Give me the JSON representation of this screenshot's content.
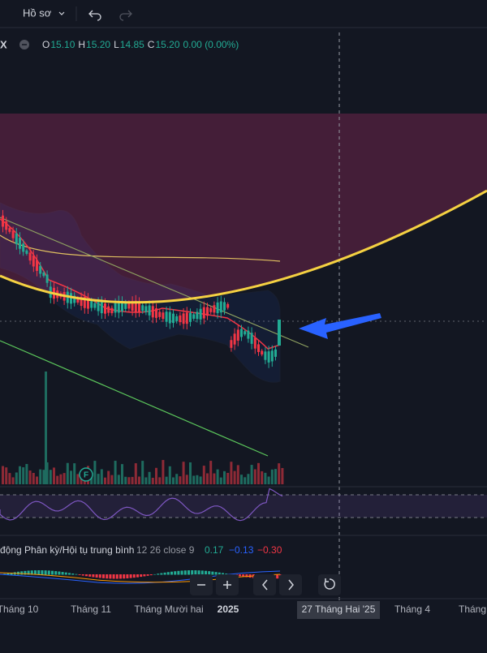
{
  "toolbar": {
    "profile": "Hồ sơ"
  },
  "legend": {
    "symbol": "X",
    "ohlc": [
      {
        "label": "O",
        "value": "15.10"
      },
      {
        "label": "H",
        "value": "15.20"
      },
      {
        "label": "L",
        "value": "14.85"
      },
      {
        "label": "C",
        "value": "15.20"
      }
    ],
    "change": "0.00 (0.00%)"
  },
  "marker": "F",
  "indicator": {
    "name": "động Phân kỳ/Hội tụ trung bình",
    "params": "12 26 close 9",
    "values": [
      "0.17",
      "−0.13",
      "−0.30"
    ]
  },
  "time_axis": {
    "labels": [
      "Tháng 10",
      "Tháng 11",
      "Tháng Mười hai",
      "2025",
      "Tháng 4",
      "Tháng"
    ],
    "crosshair": "27 Tháng Hai '25"
  }
}
